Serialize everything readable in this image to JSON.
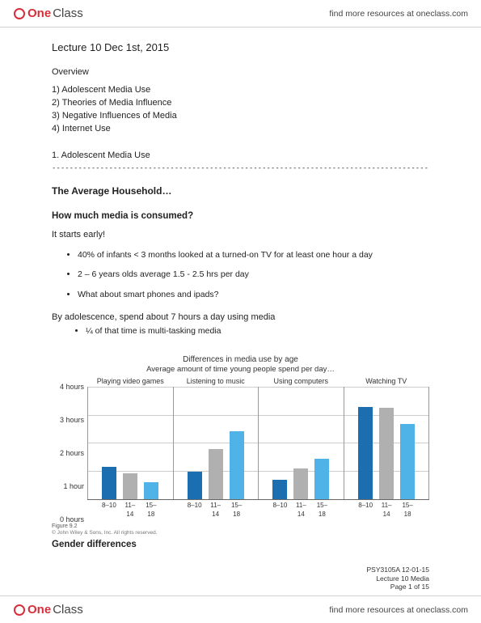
{
  "brand": {
    "part1": "One",
    "part2": "Class",
    "tagline_prefix": "find more resources at ",
    "tagline_link": "oneclass.com"
  },
  "doc": {
    "title": "Lecture 10 Dec 1st, 2015",
    "overview_label": "Overview",
    "overview": [
      "1)   Adolescent Media Use",
      "2)   Theories of Media Influence",
      "3)   Negative Influences of Media",
      "4)   Internet Use"
    ],
    "section1_label": "1. Adolescent Media Use",
    "rule": "--------------------------------------------------------------------------------------------------------------------",
    "heading_avg": "The Average Household…",
    "heading_how": "How much media is consumed?",
    "starts": "It starts early!",
    "bullets": [
      "40% of infants < 3 months looked at a turned-on TV for at least one hour a day",
      "2 – 6 years olds average 1.5 - 2.5 hrs per day",
      "What about smart phones and ipads?"
    ],
    "by_adol": "By adolescence, spend about 7 hours a day using media",
    "by_adol_sub": "¼ of that time is multi-tasking media",
    "gender": "Gender differences"
  },
  "chart": {
    "title": "Differences in media use by age",
    "subtitle": "Average amount of time young people spend per day…",
    "y_max": 4,
    "y_ticks": [
      {
        "v": 0,
        "label": "0 hours"
      },
      {
        "v": 1,
        "label": "1 hour"
      },
      {
        "v": 2,
        "label": "2 hours"
      },
      {
        "v": 3,
        "label": "3 hours"
      },
      {
        "v": 4,
        "label": "4 hours"
      }
    ],
    "categories": [
      "8–10",
      "11–14",
      "15–18"
    ],
    "bar_colors": [
      "#1b6fb0",
      "#b0b0b0",
      "#4fb3e8"
    ],
    "panels": [
      {
        "title": "Playing video games",
        "values": [
          1.15,
          0.92,
          0.6
        ]
      },
      {
        "title": "Listening to music",
        "values": [
          1.0,
          1.8,
          2.45
        ]
      },
      {
        "title": "Using computers",
        "values": [
          0.7,
          1.1,
          1.45
        ]
      },
      {
        "title": "Watching TV",
        "values": [
          3.3,
          3.28,
          2.7
        ]
      }
    ],
    "figure_label": "Figure 9.2",
    "copyright": "© John Wiley & Sons, Inc. All rights reserved."
  },
  "meta": {
    "line1": "PSY3105A 12-01-15",
    "line2": "Lecture 10 Media",
    "line3": "Page 1 of 15"
  }
}
